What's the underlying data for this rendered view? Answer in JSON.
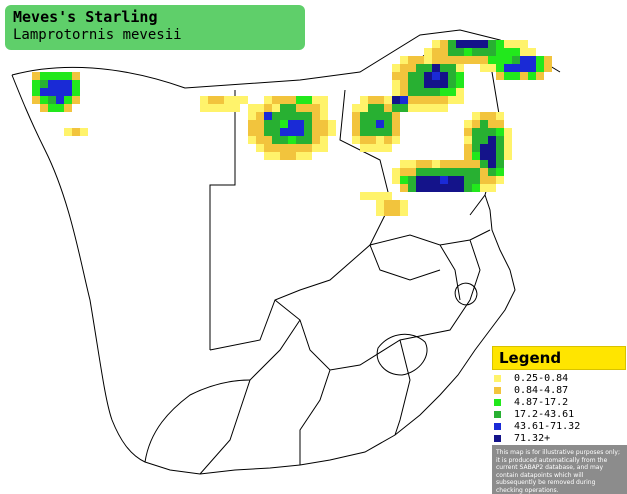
{
  "title": {
    "common_name": "Meves's Starling",
    "scientific_name": "Lamprotornis mevesii"
  },
  "legend": {
    "heading": "Legend",
    "items": [
      {
        "label": "0.25-0.84",
        "color": "#fff36b"
      },
      {
        "label": "0.84-4.87",
        "color": "#f2c43d"
      },
      {
        "label": "4.87-17.2",
        "color": "#22e81c"
      },
      {
        "label": "17.2-43.61",
        "color": "#28b032"
      },
      {
        "label": "43.61-71.32",
        "color": "#1a2ad6"
      },
      {
        "label": "71.32+",
        "color": "#14138a"
      }
    ],
    "disclaimer": "This map is for illustrative purposes only; it is produced automatically from the current SABAP2 database, and may contain datapoints which will subsequently be removed during checking operations."
  },
  "colors": {
    "title_bg": "#5fcf6a",
    "legend_header_bg": "#ffe500",
    "disclaimer_bg": "#8c8c8c",
    "land_fill": "#ffffff",
    "border_stroke": "#000000"
  }
}
